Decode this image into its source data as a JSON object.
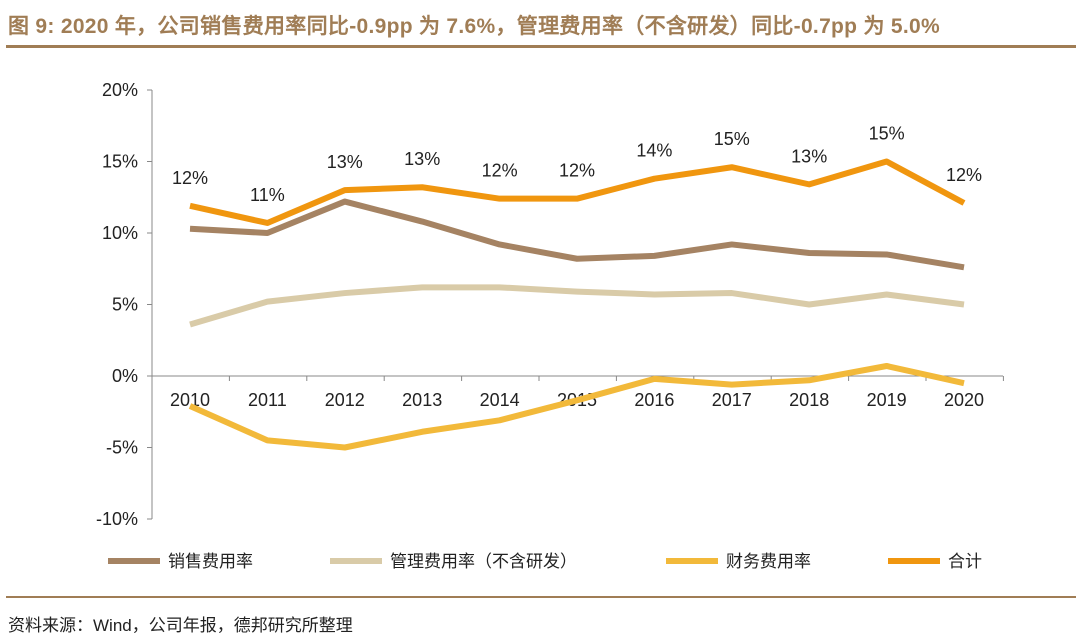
{
  "title": "图 9: 2020 年，公司销售费用率同比-0.9pp 为 7.6%，管理费用率（不含研发）同比-0.7pp 为 5.0%",
  "source": "资料来源：Wind，公司年报，德邦研究所整理",
  "chart_data": {
    "type": "line",
    "title": "图 9: 2020 年，公司销售费用率同比-0.9pp 为 7.6%，管理费用率（不含研发）同比-0.7pp 为 5.0%",
    "categories": [
      "2010",
      "2011",
      "2012",
      "2013",
      "2014",
      "2015",
      "2016",
      "2017",
      "2018",
      "2019",
      "2020"
    ],
    "ylim": [
      -10,
      20
    ],
    "yticks": [
      "-10%",
      "-5%",
      "0%",
      "5%",
      "10%",
      "15%",
      "20%"
    ],
    "ytick_values": [
      -10,
      -5,
      0,
      5,
      10,
      15,
      20
    ],
    "grid": false,
    "legend": "bottom",
    "series": [
      {
        "name": "销售费用率",
        "color": "#a58363",
        "values": [
          10.3,
          10.0,
          12.2,
          10.8,
          9.2,
          8.2,
          8.4,
          9.2,
          8.6,
          8.5,
          7.6
        ]
      },
      {
        "name": "管理费用率（不含研发）",
        "color": "#d9cba8",
        "values": [
          3.6,
          5.2,
          5.8,
          6.2,
          6.2,
          5.9,
          5.7,
          5.8,
          5.0,
          5.7,
          5.0
        ]
      },
      {
        "name": "财务费用率",
        "color": "#f2b93a",
        "values": [
          -2.1,
          -4.5,
          -5.0,
          -3.9,
          -3.1,
          -1.7,
          -0.2,
          -0.6,
          -0.3,
          0.7,
          -0.5
        ]
      },
      {
        "name": "合计",
        "color": "#f0960f",
        "values": [
          11.9,
          10.7,
          13.0,
          13.2,
          12.4,
          12.4,
          13.8,
          14.6,
          13.4,
          15.0,
          12.1
        ],
        "data_labels": [
          "12%",
          "11%",
          "13%",
          "13%",
          "12%",
          "12%",
          "14%",
          "15%",
          "13%",
          "15%",
          "12%"
        ]
      }
    ]
  }
}
